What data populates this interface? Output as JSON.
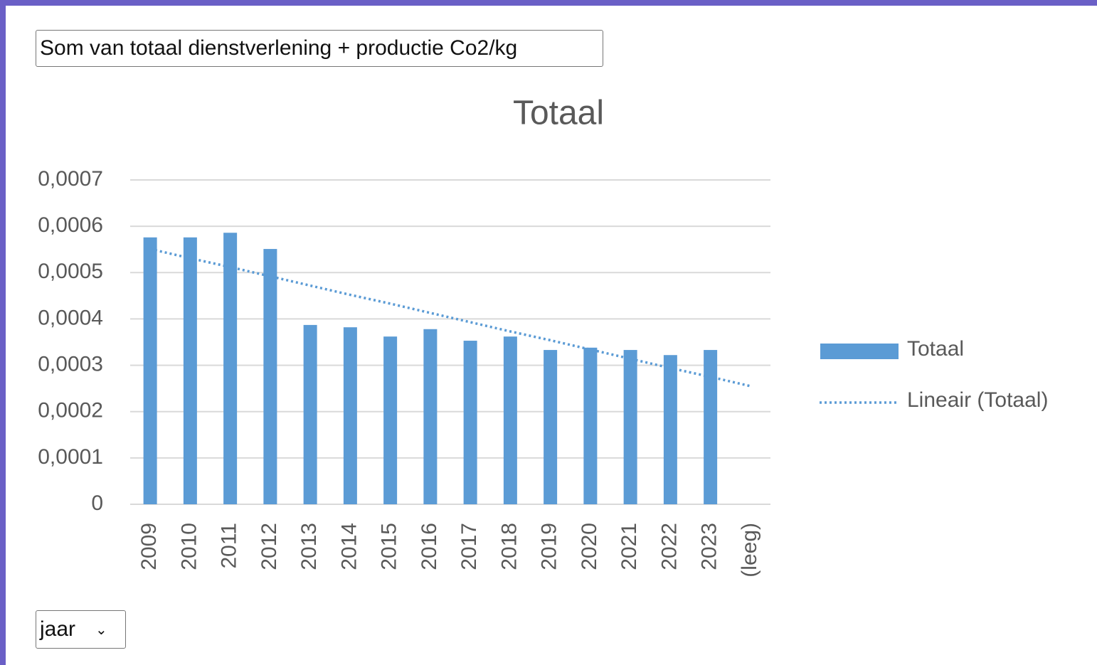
{
  "controls": {
    "value_field": "Som van totaal dienstverlening + productie Co2/kg",
    "axis_field": "jaar"
  },
  "chart_data": {
    "type": "bar",
    "title": "Totaal",
    "categories": [
      "2009",
      "2010",
      "2011",
      "2012",
      "2013",
      "2014",
      "2015",
      "2016",
      "2017",
      "2018",
      "2019",
      "2020",
      "2021",
      "2022",
      "2023",
      "(leeg)"
    ],
    "series": [
      {
        "name": "Totaal",
        "color": "#5b9bd5",
        "values": [
          0.000576,
          0.000576,
          0.000586,
          0.000551,
          0.000387,
          0.000382,
          0.000362,
          0.000378,
          0.000353,
          0.000362,
          0.000333,
          0.000338,
          0.000333,
          0.000322,
          0.000333,
          null
        ]
      },
      {
        "name": "Lineair (Totaal)",
        "color": "#5b9bd5",
        "style": "dotted",
        "values": [
          0.000551,
          0.000531,
          0.000512,
          0.000492,
          0.000472,
          0.000452,
          0.000433,
          0.000413,
          0.000393,
          0.000373,
          0.000354,
          0.000334,
          0.000314,
          0.000294,
          0.000275,
          0.000255
        ]
      }
    ],
    "ylim": [
      0,
      0.0007
    ],
    "yticks": [
      0,
      {
        "value": 0.0001,
        "label": "0,0001"
      },
      {
        "value": 0.0002,
        "label": "0,0002"
      },
      {
        "value": 0.0003,
        "label": "0,0003"
      },
      {
        "value": 0.0004,
        "label": "0,0004"
      },
      {
        "value": 0.0005,
        "label": "0,0005"
      },
      {
        "value": 0.0006,
        "label": "0,0006"
      },
      {
        "value": 0.0007,
        "label": "0,0007"
      }
    ],
    "grid": true,
    "legend": "right"
  }
}
